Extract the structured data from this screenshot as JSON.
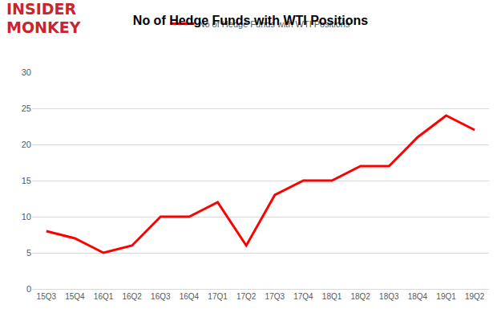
{
  "chart_data": {
    "type": "line",
    "title": "No of Hedge Funds with WTI Positions",
    "logo": [
      "INSIDER",
      "MONKEY"
    ],
    "categories": [
      "15Q3",
      "15Q4",
      "16Q1",
      "16Q2",
      "16Q3",
      "16Q4",
      "17Q1",
      "17Q2",
      "17Q3",
      "17Q4",
      "18Q1",
      "18Q2",
      "18Q3",
      "18Q4",
      "19Q1",
      "19Q2"
    ],
    "series": [
      {
        "name": "No of Hedge Funds with WTI Positions",
        "color": "#ff0000",
        "values": [
          8,
          7,
          5,
          6,
          10,
          10,
          12,
          6,
          13,
          15,
          15,
          17,
          17,
          21,
          24,
          22
        ]
      }
    ],
    "ylim": [
      0,
      30
    ],
    "yticks": [
      0,
      5,
      10,
      15,
      20,
      25,
      30
    ],
    "grid": true,
    "legend": "top"
  }
}
